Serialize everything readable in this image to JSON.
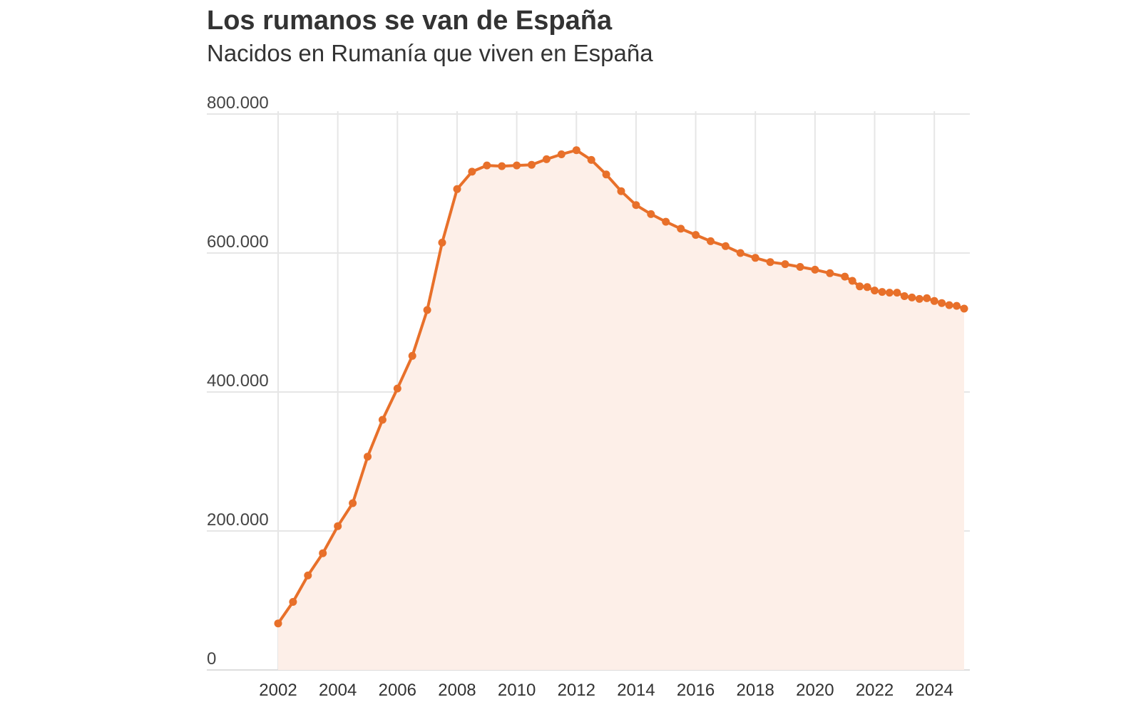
{
  "chart_data": {
    "type": "line",
    "title": "Los rumanos se van de España",
    "subtitle": "Nacidos en Rumanía que viven en España",
    "xlabel": "",
    "ylabel": "",
    "ylim": [
      0,
      800000
    ],
    "xlim": [
      2002,
      2025
    ],
    "y_ticks": [
      0,
      200000,
      400000,
      600000,
      800000
    ],
    "y_tick_labels": [
      "0",
      "200.000",
      "400.000",
      "600.000",
      "800.000"
    ],
    "x_ticks": [
      2002,
      2004,
      2006,
      2008,
      2010,
      2012,
      2014,
      2016,
      2018,
      2020,
      2022,
      2024
    ],
    "x_tick_labels": [
      "2002",
      "2004",
      "2006",
      "2008",
      "2010",
      "2012",
      "2014",
      "2016",
      "2018",
      "2020",
      "2022",
      "2024"
    ],
    "grid": true,
    "legend": "none",
    "line_color": "#e8702a",
    "area_color": "#fdefe8",
    "grid_color": "#e6e6e6",
    "series": [
      {
        "x": [
          2002,
          2002.5,
          2003,
          2003.5,
          2004,
          2004.5,
          2005,
          2005.5,
          2006,
          2006.5,
          2007,
          2007.5,
          2008,
          2008.5,
          2009,
          2009.5,
          2010,
          2010.5,
          2011,
          2011.5,
          2012,
          2012.5,
          2013,
          2013.5,
          2014,
          2014.5,
          2015,
          2015.5,
          2016,
          2016.5,
          2017,
          2017.5,
          2018,
          2018.5,
          2019,
          2019.5,
          2020,
          2020.5,
          2021,
          2021.25,
          2021.5,
          2021.75,
          2022,
          2022.25,
          2022.5,
          2022.75,
          2023,
          2023.25,
          2023.5,
          2023.75,
          2024,
          2024.25,
          2024.5,
          2024.75,
          2025
        ],
        "values": [
          67000,
          98000,
          136000,
          168000,
          207000,
          240000,
          307000,
          360000,
          405000,
          452000,
          518000,
          615000,
          692000,
          717000,
          726000,
          725000,
          726000,
          727000,
          735000,
          742000,
          748000,
          734000,
          713000,
          689000,
          669000,
          656000,
          645000,
          635000,
          626000,
          617000,
          610000,
          600000,
          593000,
          587000,
          584000,
          580000,
          576000,
          571000,
          566000,
          560000,
          552000,
          551000,
          546000,
          544000,
          543000,
          543000,
          538000,
          536000,
          534000,
          535000,
          531000,
          528000,
          525000,
          524000,
          520000
        ]
      }
    ]
  }
}
